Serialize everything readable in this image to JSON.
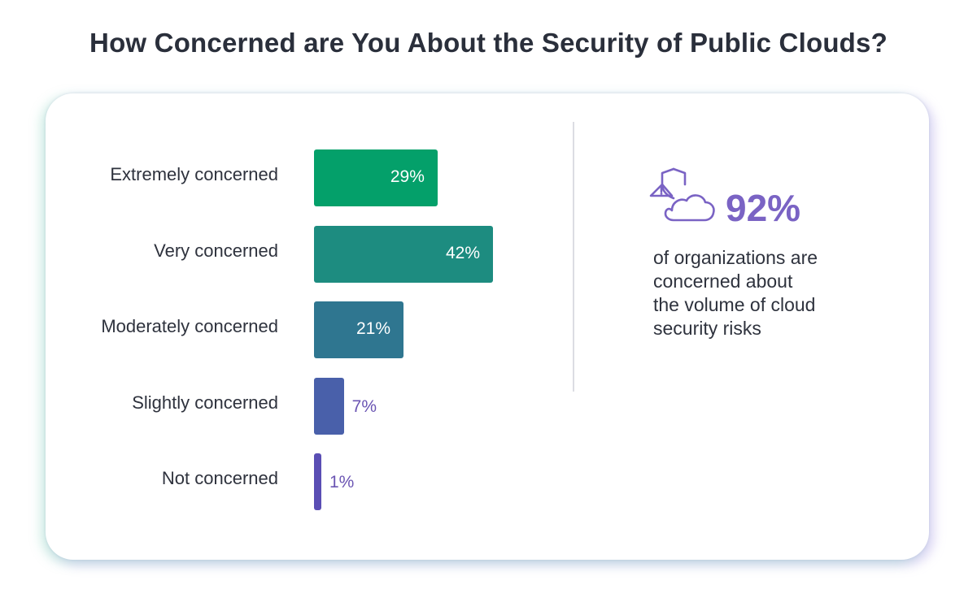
{
  "title": "How Concerned are You About the Security of Public Clouds?",
  "chart_data": {
    "type": "bar",
    "orientation": "horizontal",
    "categories": [
      "Extremely concerned",
      "Very concerned",
      "Moderately concerned",
      "Slightly concerned",
      "Not concerned"
    ],
    "values": [
      29,
      42,
      21,
      7,
      1
    ],
    "value_labels": [
      "29%",
      "42%",
      "21%",
      "7%",
      "1%"
    ],
    "unit": "%",
    "colors": [
      "#04a06a",
      "#1d8c80",
      "#2f7690",
      "#4960aa",
      "#5a4eb4"
    ],
    "xlim": [
      0,
      42
    ],
    "grid": false,
    "legend": "none"
  },
  "callout": {
    "icon": "shield-warning-cloud-icon",
    "value": "92%",
    "text_lines": [
      "of organizations are",
      "concerned about",
      "the volume of cloud",
      "security risks"
    ],
    "accent_color": "#7a63c4"
  }
}
